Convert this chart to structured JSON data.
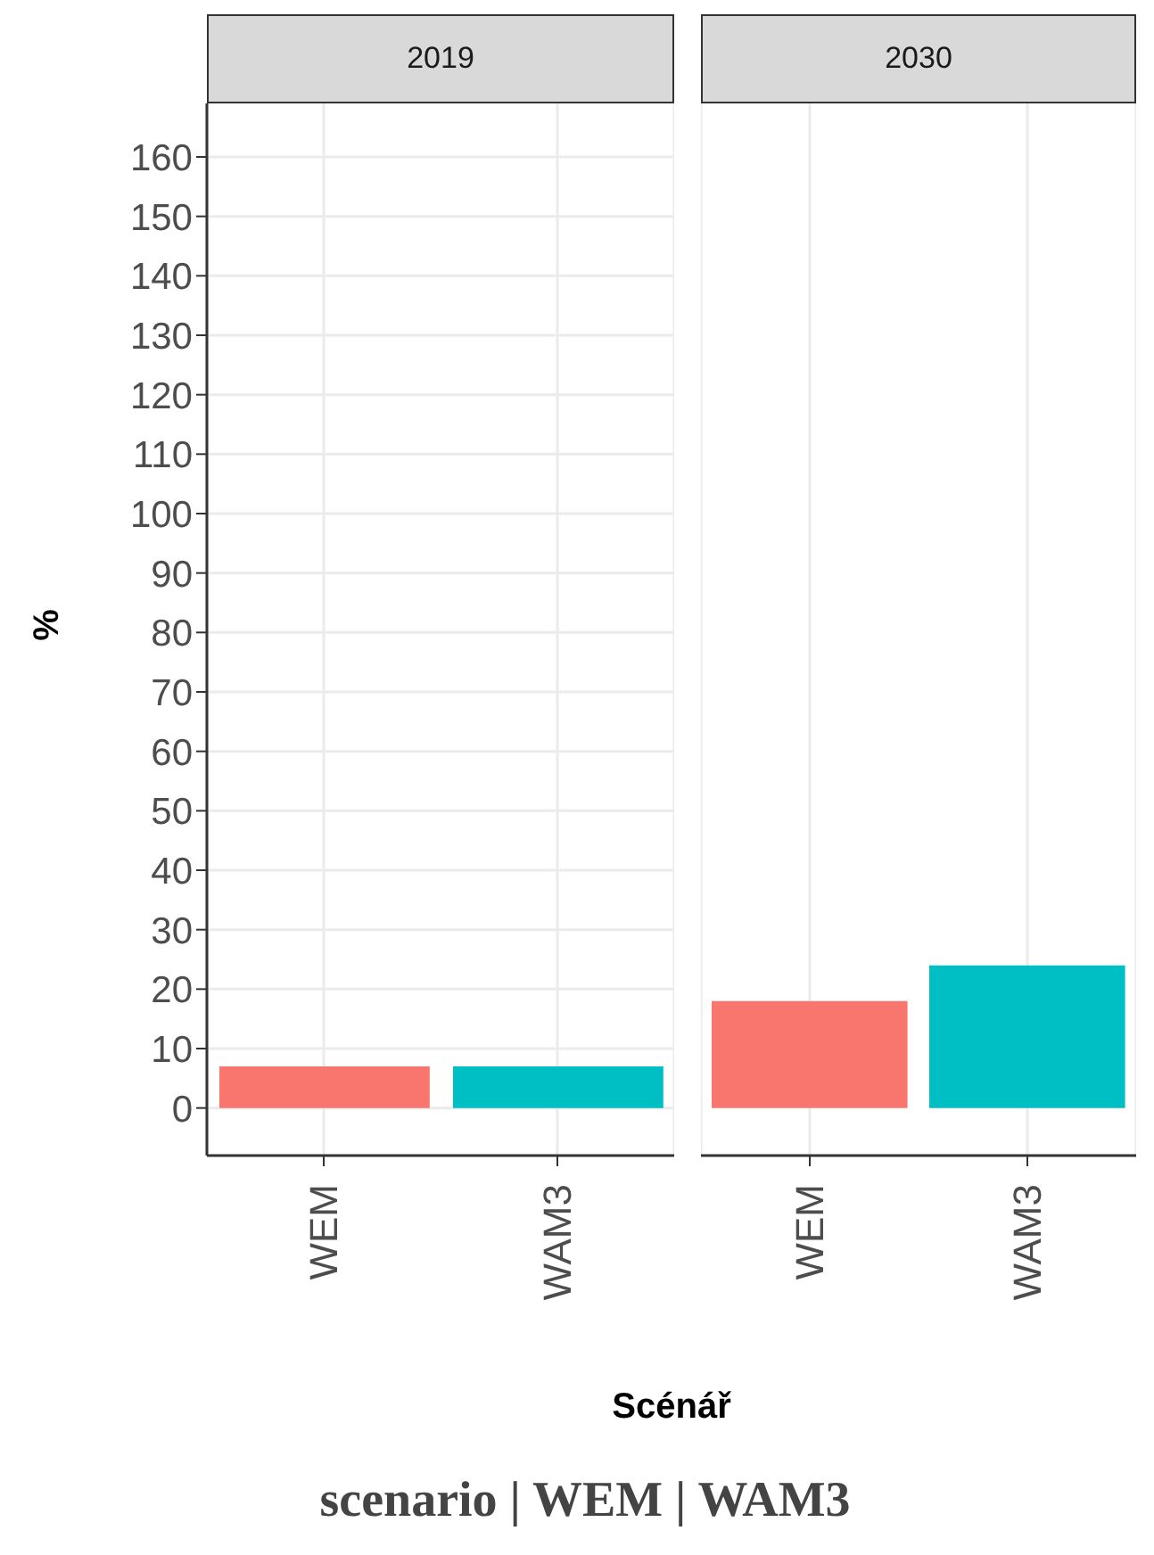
{
  "chart_data": [
    {
      "type": "bar",
      "title": "2019",
      "ylabel": "%",
      "xlabel": "Scénář",
      "categories": [
        "WEM",
        "WAM3"
      ],
      "values": [
        7,
        7
      ],
      "colors": [
        "#f8766d",
        "#00bfc4"
      ],
      "ylim": [
        -8,
        169
      ],
      "yticks": [
        0,
        10,
        20,
        30,
        40,
        50,
        60,
        70,
        80,
        90,
        100,
        110,
        120,
        130,
        140,
        150,
        160
      ],
      "grid": true,
      "annotations": [
        "scenario | WEM | WAM3"
      ]
    },
    {
      "type": "bar",
      "title": "2030",
      "categories": [
        "WEM",
        "WAM3"
      ],
      "values": [
        18,
        24
      ],
      "colors": [
        "#f8766d",
        "#00bfc4"
      ],
      "ylim": [
        -8,
        169
      ],
      "yticks": [
        0,
        10,
        20,
        30,
        40,
        50,
        60,
        70,
        80,
        90,
        100,
        110,
        120,
        130,
        140,
        150,
        160
      ],
      "grid": true,
      "tick_labels": "x"
    }
  ]
}
